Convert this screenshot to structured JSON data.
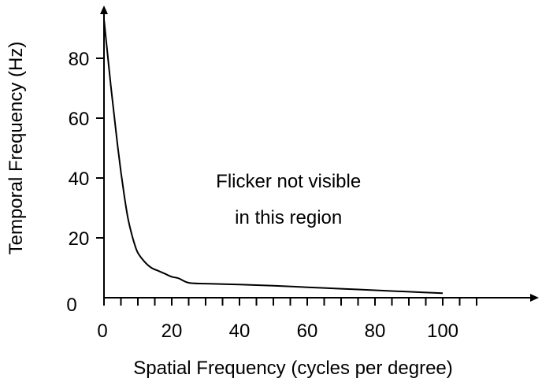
{
  "chart_data": {
    "type": "line",
    "title": "",
    "xlabel": "Spatial Frequency (cycles per degree)",
    "ylabel": "Temporal Frequency (Hz)",
    "xlim": [
      0,
      110
    ],
    "ylim": [
      0,
      95
    ],
    "x_ticks": [
      0,
      5,
      10,
      15,
      20,
      25,
      30,
      35,
      40,
      45,
      50,
      55,
      60,
      65,
      70,
      75,
      80,
      85,
      90,
      95,
      100,
      105,
      110
    ],
    "x_tick_labels": [
      {
        "value": 0,
        "label": "0"
      },
      {
        "value": 20,
        "label": "20"
      },
      {
        "value": 40,
        "label": "40"
      },
      {
        "value": 60,
        "label": "60"
      },
      {
        "value": 80,
        "label": "80"
      },
      {
        "value": 100,
        "label": "100"
      }
    ],
    "y_ticks": [
      0,
      20,
      40,
      60,
      80
    ],
    "y_tick_labels": [
      {
        "value": 0,
        "label": "0"
      },
      {
        "value": 20,
        "label": "20"
      },
      {
        "value": 40,
        "label": "40"
      },
      {
        "value": 60,
        "label": "60"
      },
      {
        "value": 80,
        "label": "80"
      }
    ],
    "grid": false,
    "series": [
      {
        "color": "#000000",
        "x": [
          0,
          1,
          2,
          3,
          4,
          5,
          6,
          7,
          8,
          9,
          10,
          12,
          14,
          16,
          18,
          20,
          22,
          25,
          30,
          40,
          50,
          60,
          70,
          80,
          90,
          100
        ],
        "y": [
          93,
          82,
          71,
          61,
          51,
          42,
          34,
          27,
          22,
          18,
          15,
          12,
          10,
          9,
          8,
          7,
          6.5,
          5,
          4.7,
          4.4,
          4,
          3.5,
          3,
          2.5,
          2,
          1.5
        ]
      }
    ],
    "annotations": [
      {
        "line1": "Flicker not visible",
        "line2": "in this region",
        "x": 54,
        "y": 38
      }
    ],
    "y_zero_label_position": "left-of-axis",
    "x_zero_label_position": "below-origin"
  }
}
